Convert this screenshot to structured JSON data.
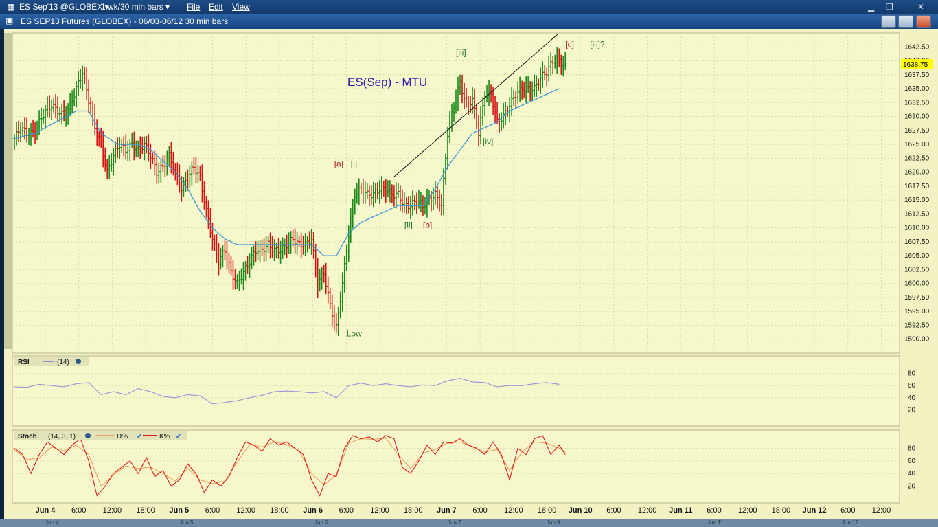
{
  "menu": {
    "symbol": "ES Sep'13 @GLOBEX",
    "interval": "1 wk/30 min bars",
    "file": "File",
    "edit": "Edit",
    "view": "View"
  },
  "window_title": "ES SEP13 Futures (GLOBEX) - 06/03-06/12 30 min bars",
  "chart_data": {
    "type": "ohlc",
    "title": "ES(Sep) - MTU",
    "last_price": "1638.75",
    "ylim": [
      1587.5,
      1645
    ],
    "yticks": [
      "1642.50",
      "1640.00",
      "1637.50",
      "1635.00",
      "1632.50",
      "1630.00",
      "1627.50",
      "1625.00",
      "1622.50",
      "1620.00",
      "1617.50",
      "1615.00",
      "1612.50",
      "1610.00",
      "1607.50",
      "1605.00",
      "1602.50",
      "1600.00",
      "1597.50",
      "1595.00",
      "1592.50",
      "1590.00"
    ],
    "xticks": [
      "Jun 4",
      "6:00",
      "12:00",
      "18:00",
      "Jun 5",
      "6:00",
      "12:00",
      "18:00",
      "Jun 6",
      "6:00",
      "12:00",
      "18:00",
      "Jun 7",
      "6:00",
      "12:00",
      "18:00",
      "Jun 10",
      "6:00",
      "12:00",
      "Jun 11",
      "6:00",
      "12:00",
      "18:00",
      "Jun 12",
      "6:00",
      "12:00"
    ],
    "bottom_dates": [
      "Jun 4",
      "Jun 5",
      "Jun 6",
      "Jun 7",
      "Jun 9",
      "Jun 11",
      "Jun 12"
    ],
    "price_path": [
      [
        0,
        1626
      ],
      [
        3,
        1628
      ],
      [
        6,
        1627
      ],
      [
        9,
        1627
      ],
      [
        12,
        1629
      ],
      [
        15,
        1631
      ],
      [
        18,
        1632
      ],
      [
        21,
        1631
      ],
      [
        24,
        1630
      ],
      [
        27,
        1632
      ],
      [
        30,
        1635
      ],
      [
        33,
        1638
      ],
      [
        36,
        1633
      ],
      [
        39,
        1628
      ],
      [
        42,
        1625
      ],
      [
        45,
        1620
      ],
      [
        48,
        1623
      ],
      [
        51,
        1625
      ],
      [
        54,
        1624
      ],
      [
        57,
        1625
      ],
      [
        60,
        1624
      ],
      [
        63,
        1625
      ],
      [
        66,
        1623
      ],
      [
        69,
        1620
      ],
      [
        72,
        1621
      ],
      [
        75,
        1623
      ],
      [
        78,
        1620
      ],
      [
        81,
        1617
      ],
      [
        84,
        1619
      ],
      [
        87,
        1621
      ],
      [
        90,
        1619
      ],
      [
        93,
        1613
      ],
      [
        96,
        1608
      ],
      [
        99,
        1604
      ],
      [
        102,
        1606
      ],
      [
        105,
        1602
      ],
      [
        108,
        1600
      ],
      [
        111,
        1602
      ],
      [
        114,
        1604
      ],
      [
        117,
        1606
      ],
      [
        120,
        1606
      ],
      [
        123,
        1607
      ],
      [
        126,
        1606
      ],
      [
        129,
        1606
      ],
      [
        132,
        1607
      ],
      [
        135,
        1608
      ],
      [
        138,
        1607
      ],
      [
        141,
        1607
      ],
      [
        144,
        1608
      ],
      [
        147,
        1600
      ],
      [
        150,
        1602
      ],
      [
        153,
        1596
      ],
      [
        156,
        1592
      ],
      [
        159,
        1600
      ],
      [
        162,
        1609
      ],
      [
        165,
        1616
      ],
      [
        168,
        1617
      ],
      [
        171,
        1616
      ],
      [
        174,
        1616
      ],
      [
        177,
        1617
      ],
      [
        180,
        1617
      ],
      [
        183,
        1616
      ],
      [
        186,
        1616
      ],
      [
        189,
        1614
      ],
      [
        192,
        1614
      ],
      [
        195,
        1615
      ],
      [
        198,
        1614
      ],
      [
        201,
        1615
      ],
      [
        204,
        1616
      ],
      [
        207,
        1614
      ],
      [
        210,
        1627
      ],
      [
        213,
        1632
      ],
      [
        216,
        1636
      ],
      [
        219,
        1632
      ],
      [
        222,
        1633
      ],
      [
        225,
        1627
      ],
      [
        228,
        1634
      ],
      [
        231,
        1634
      ],
      [
        234,
        1629
      ],
      [
        237,
        1630
      ],
      [
        240,
        1632
      ],
      [
        243,
        1634
      ],
      [
        246,
        1635
      ],
      [
        249,
        1635
      ],
      [
        252,
        1635
      ],
      [
        255,
        1637
      ],
      [
        258,
        1638
      ],
      [
        261,
        1640
      ],
      [
        264,
        1640
      ],
      [
        267,
        1639
      ]
    ],
    "ma_path": [
      [
        0,
        1626
      ],
      [
        10,
        1627
      ],
      [
        20,
        1629
      ],
      [
        30,
        1631
      ],
      [
        36,
        1631
      ],
      [
        42,
        1627
      ],
      [
        50,
        1625
      ],
      [
        60,
        1625
      ],
      [
        66,
        1624
      ],
      [
        72,
        1622
      ],
      [
        78,
        1620
      ],
      [
        84,
        1617
      ],
      [
        90,
        1613
      ],
      [
        96,
        1610
      ],
      [
        102,
        1608
      ],
      [
        108,
        1607
      ],
      [
        114,
        1607
      ],
      [
        120,
        1607
      ],
      [
        126,
        1607
      ],
      [
        132,
        1607
      ],
      [
        138,
        1607
      ],
      [
        144,
        1607
      ],
      [
        150,
        1605
      ],
      [
        156,
        1605
      ],
      [
        162,
        1609
      ],
      [
        168,
        1611
      ],
      [
        174,
        1612
      ],
      [
        180,
        1613
      ],
      [
        186,
        1614
      ],
      [
        192,
        1614
      ],
      [
        198,
        1614
      ],
      [
        204,
        1617
      ],
      [
        210,
        1621
      ],
      [
        216,
        1624
      ],
      [
        222,
        1627
      ],
      [
        228,
        1628
      ],
      [
        234,
        1629
      ],
      [
        240,
        1631
      ],
      [
        246,
        1632
      ],
      [
        252,
        1633
      ],
      [
        258,
        1634
      ],
      [
        264,
        1635
      ]
    ],
    "rsi": {
      "label": "RSI",
      "period": "(14)",
      "ylim": [
        0,
        100
      ],
      "yticks": [
        "80",
        "60",
        "40",
        "20"
      ],
      "values": [
        [
          0,
          58
        ],
        [
          6,
          57
        ],
        [
          12,
          62
        ],
        [
          18,
          60
        ],
        [
          24,
          58
        ],
        [
          30,
          63
        ],
        [
          36,
          65
        ],
        [
          42,
          45
        ],
        [
          48,
          50
        ],
        [
          54,
          45
        ],
        [
          60,
          55
        ],
        [
          66,
          50
        ],
        [
          72,
          42
        ],
        [
          78,
          40
        ],
        [
          84,
          45
        ],
        [
          90,
          43
        ],
        [
          96,
          30
        ],
        [
          102,
          32
        ],
        [
          108,
          35
        ],
        [
          114,
          40
        ],
        [
          120,
          44
        ],
        [
          126,
          50
        ],
        [
          132,
          51
        ],
        [
          138,
          50
        ],
        [
          144,
          48
        ],
        [
          150,
          50
        ],
        [
          156,
          40
        ],
        [
          162,
          60
        ],
        [
          168,
          64
        ],
        [
          174,
          60
        ],
        [
          180,
          63
        ],
        [
          186,
          60
        ],
        [
          192,
          58
        ],
        [
          198,
          61
        ],
        [
          204,
          60
        ],
        [
          210,
          68
        ],
        [
          216,
          72
        ],
        [
          222,
          66
        ],
        [
          228,
          65
        ],
        [
          234,
          58
        ],
        [
          240,
          60
        ],
        [
          246,
          60
        ],
        [
          252,
          63
        ],
        [
          258,
          65
        ],
        [
          264,
          62
        ]
      ]
    },
    "stoch": {
      "label": "Stoch",
      "params": "(14, 3, 1)",
      "d_label": "D%",
      "k_label": "K%",
      "ylim": [
        0,
        100
      ],
      "yticks": [
        "80",
        "60",
        "40",
        "20"
      ],
      "k_values": [
        [
          0,
          80
        ],
        [
          4,
          70
        ],
        [
          8,
          40
        ],
        [
          12,
          70
        ],
        [
          16,
          90
        ],
        [
          20,
          80
        ],
        [
          24,
          70
        ],
        [
          28,
          85
        ],
        [
          32,
          95
        ],
        [
          36,
          60
        ],
        [
          40,
          5
        ],
        [
          44,
          20
        ],
        [
          48,
          40
        ],
        [
          52,
          50
        ],
        [
          56,
          60
        ],
        [
          60,
          40
        ],
        [
          64,
          65
        ],
        [
          68,
          35
        ],
        [
          72,
          45
        ],
        [
          76,
          20
        ],
        [
          80,
          30
        ],
        [
          84,
          55
        ],
        [
          88,
          40
        ],
        [
          92,
          10
        ],
        [
          96,
          30
        ],
        [
          100,
          20
        ],
        [
          104,
          35
        ],
        [
          108,
          65
        ],
        [
          112,
          90
        ],
        [
          116,
          85
        ],
        [
          120,
          75
        ],
        [
          124,
          95
        ],
        [
          128,
          85
        ],
        [
          132,
          90
        ],
        [
          136,
          80
        ],
        [
          140,
          70
        ],
        [
          144,
          30
        ],
        [
          148,
          5
        ],
        [
          152,
          40
        ],
        [
          156,
          35
        ],
        [
          160,
          80
        ],
        [
          164,
          100
        ],
        [
          168,
          95
        ],
        [
          172,
          98
        ],
        [
          176,
          90
        ],
        [
          180,
          100
        ],
        [
          184,
          95
        ],
        [
          188,
          50
        ],
        [
          192,
          40
        ],
        [
          196,
          60
        ],
        [
          200,
          85
        ],
        [
          204,
          70
        ],
        [
          208,
          90
        ],
        [
          212,
          88
        ],
        [
          216,
          95
        ],
        [
          220,
          85
        ],
        [
          224,
          80
        ],
        [
          228,
          70
        ],
        [
          232,
          90
        ],
        [
          236,
          70
        ],
        [
          240,
          30
        ],
        [
          244,
          80
        ],
        [
          248,
          70
        ],
        [
          252,
          95
        ],
        [
          256,
          100
        ],
        [
          260,
          70
        ],
        [
          264,
          85
        ],
        [
          267,
          70
        ]
      ],
      "d_values": [
        [
          0,
          78
        ],
        [
          6,
          62
        ],
        [
          12,
          65
        ],
        [
          18,
          82
        ],
        [
          24,
          76
        ],
        [
          30,
          85
        ],
        [
          36,
          70
        ],
        [
          42,
          20
        ],
        [
          48,
          38
        ],
        [
          54,
          52
        ],
        [
          60,
          48
        ],
        [
          66,
          50
        ],
        [
          72,
          40
        ],
        [
          78,
          28
        ],
        [
          84,
          48
        ],
        [
          90,
          30
        ],
        [
          96,
          24
        ],
        [
          102,
          28
        ],
        [
          108,
          58
        ],
        [
          114,
          86
        ],
        [
          120,
          82
        ],
        [
          126,
          90
        ],
        [
          132,
          86
        ],
        [
          138,
          76
        ],
        [
          144,
          40
        ],
        [
          150,
          22
        ],
        [
          156,
          38
        ],
        [
          162,
          88
        ],
        [
          168,
          95
        ],
        [
          174,
          94
        ],
        [
          180,
          96
        ],
        [
          186,
          70
        ],
        [
          192,
          48
        ],
        [
          198,
          72
        ],
        [
          204,
          78
        ],
        [
          210,
          88
        ],
        [
          216,
          90
        ],
        [
          222,
          82
        ],
        [
          228,
          74
        ],
        [
          234,
          78
        ],
        [
          240,
          45
        ],
        [
          246,
          74
        ],
        [
          252,
          90
        ],
        [
          258,
          88
        ],
        [
          264,
          80
        ],
        [
          267,
          74
        ]
      ]
    },
    "annotations": [
      {
        "text": "[a]",
        "x": 155,
        "y": 1621,
        "color": "#b01818"
      },
      {
        "text": "[i]",
        "x": 163,
        "y": 1621,
        "color": "#227a22"
      },
      {
        "text": "Low",
        "x": 161,
        "y": 1590.5,
        "color": "#227a22"
      },
      {
        "text": "[ii]",
        "x": 189,
        "y": 1610,
        "color": "#227a22"
      },
      {
        "text": "[b]",
        "x": 198,
        "y": 1610,
        "color": "#b01818"
      },
      {
        "text": "[iii]",
        "x": 214,
        "y": 1641,
        "color": "#227a22"
      },
      {
        "text": "[iv]",
        "x": 227,
        "y": 1625,
        "color": "#227a22"
      },
      {
        "text": "[c]",
        "x": 267,
        "y": 1642.5,
        "color": "#b01818"
      },
      {
        "text": "[iii]?",
        "x": 279,
        "y": 1642.5,
        "color": "#227a22"
      }
    ]
  }
}
